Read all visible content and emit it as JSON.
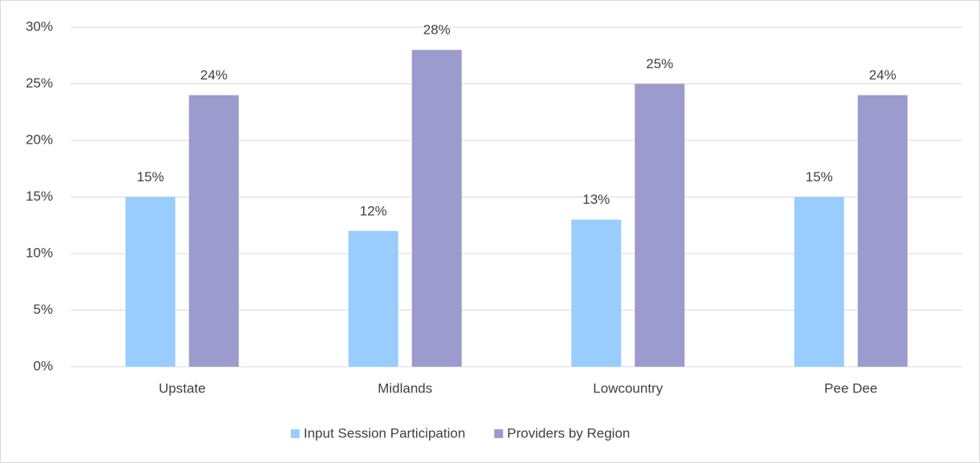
{
  "chart_data": {
    "type": "bar",
    "categories": [
      "Upstate",
      "Midlands",
      "Lowcountry",
      "Pee Dee"
    ],
    "series": [
      {
        "name": "Input Session Participation",
        "color": "#99ccff",
        "values": [
          15,
          12,
          13,
          15
        ],
        "value_labels": [
          "15%",
          "12%",
          "13%",
          "15%"
        ]
      },
      {
        "name": "Providers by Region",
        "color": "#9b9bcd",
        "values": [
          24,
          28,
          25,
          24
        ],
        "value_labels": [
          "24%",
          "28%",
          "25%",
          "24%"
        ]
      }
    ],
    "ylim": [
      0,
      30
    ],
    "yticks": [
      {
        "value": 0,
        "label": "0%"
      },
      {
        "value": 5,
        "label": "5%"
      },
      {
        "value": 10,
        "label": "10%"
      },
      {
        "value": 15,
        "label": "15%"
      },
      {
        "value": 20,
        "label": "20%"
      },
      {
        "value": 25,
        "label": "25%"
      },
      {
        "value": 30,
        "label": "30%"
      }
    ],
    "grid": true,
    "legend": "bottom"
  }
}
